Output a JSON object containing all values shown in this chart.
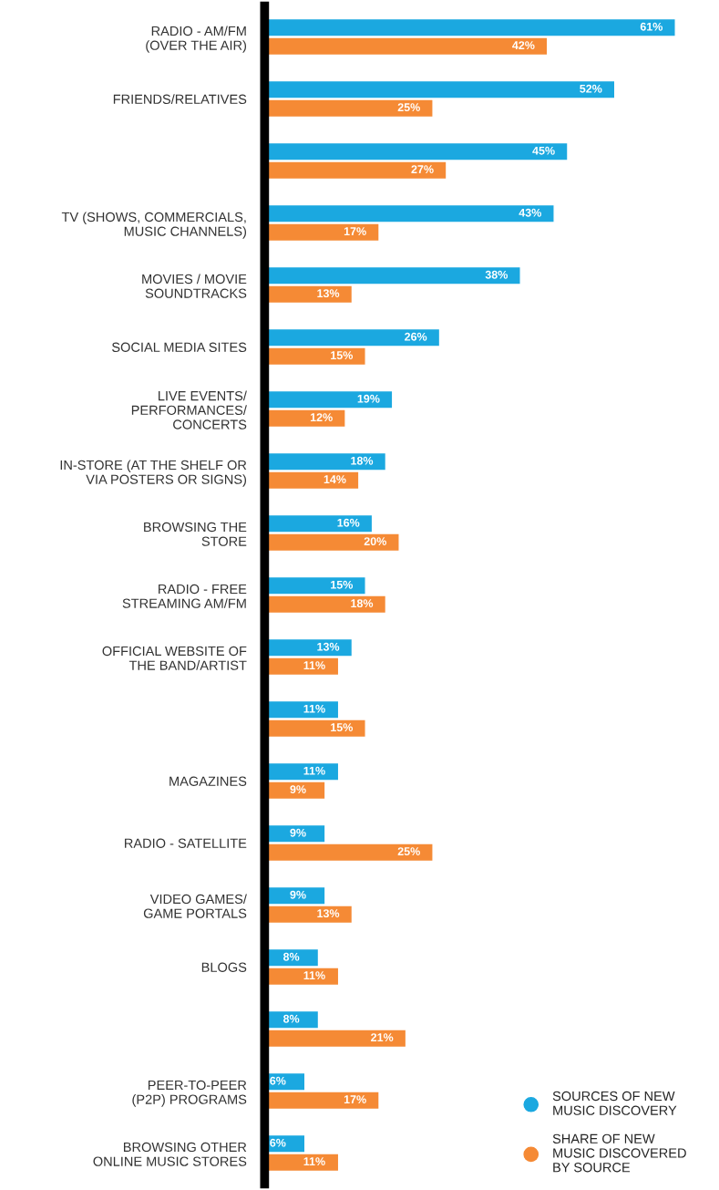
{
  "chart_data": {
    "type": "bar",
    "orientation": "horizontal",
    "categories": [
      "RADIO - AM/FM\n(OVER THE AIR)",
      "FRIENDS/RELATIVES",
      null,
      "TV (SHOWS, COMMERCIALS,\nMUSIC CHANNELS)",
      "MOVIES / MOVIE\nSOUNDTRACKS",
      "SOCIAL MEDIA SITES",
      "LIVE EVENTS/\nPERFORMANCES/\nCONCERTS",
      "IN-STORE (AT THE SHELF OR\nVIA POSTERS OR SIGNS)",
      "BROWSING THE\nSTORE",
      "RADIO - FREE\nSTREAMING AM/FM",
      "OFFICIAL WEBSITE OF\nTHE BAND/ARTIST",
      null,
      "MAGAZINES",
      "RADIO - SATELLITE",
      "VIDEO GAMES/\nGAME PORTALS",
      "BLOGS",
      null,
      "PEER-TO-PEER\n(P2P) PROGRAMS",
      "BROWSING OTHER\nONLINE MUSIC STORES"
    ],
    "series": [
      {
        "name": "SOURCES OF NEW\nMUSIC DISCOVERY",
        "color": "#1ba8e0",
        "values": [
          61,
          52,
          45,
          43,
          38,
          26,
          19,
          18,
          16,
          15,
          13,
          11,
          11,
          9,
          9,
          8,
          8,
          6,
          6
        ],
        "value_labels": [
          "61%",
          "52%",
          "45%",
          "43%",
          "38%",
          "26%",
          "19%",
          "18%",
          "16%",
          "15%",
          "13%",
          "11%",
          "11%",
          "9%",
          "9%",
          "8%",
          "8%",
          "6%",
          "6%"
        ]
      },
      {
        "name": "SHARE OF NEW\nMUSIC DISCOVERED\nBY SOURCE",
        "color": "#f58a35",
        "values": [
          42,
          25,
          27,
          17,
          13,
          15,
          12,
          14,
          20,
          18,
          11,
          15,
          9,
          25,
          13,
          11,
          21,
          17,
          11
        ],
        "value_labels": [
          "42%",
          "25%",
          "27%",
          "17%",
          "13%",
          "15%",
          "12%",
          "14%",
          "20%",
          "18%",
          "11%",
          "15%",
          "9%",
          "25%",
          "13%",
          "11%",
          "21%",
          "17%",
          "11%"
        ]
      }
    ],
    "legend": "bottom right",
    "tick_labels": "y",
    "grid": false
  }
}
